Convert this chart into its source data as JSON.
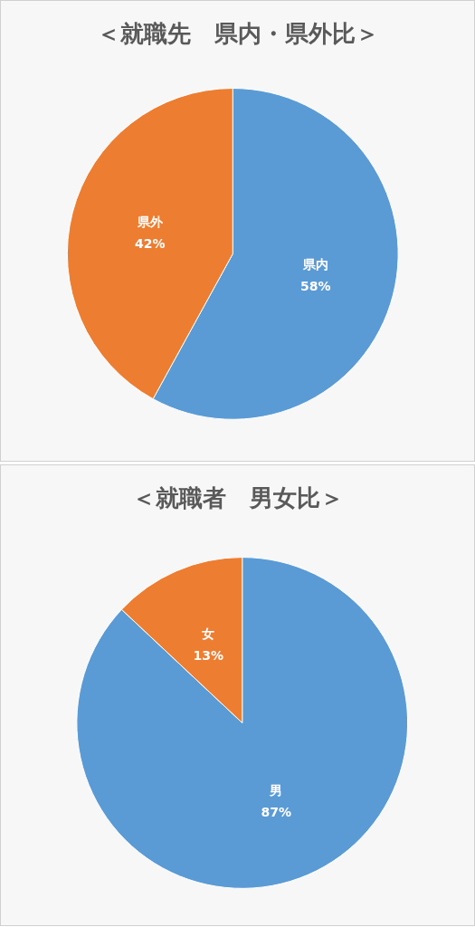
{
  "chart_data": [
    {
      "type": "pie",
      "title": "＜就職先　県内・県外比＞",
      "categories": [
        "県内",
        "県外"
      ],
      "values": [
        58,
        42
      ],
      "colors": [
        "#5b9bd5",
        "#ed7d31"
      ],
      "value_labels": [
        "58%",
        "42%"
      ]
    },
    {
      "type": "pie",
      "title": "＜就職者　男女比＞",
      "categories": [
        "男",
        "女"
      ],
      "values": [
        87,
        13
      ],
      "colors": [
        "#5b9bd5",
        "#ed7d31"
      ],
      "value_labels": [
        "87%",
        "13%"
      ]
    }
  ]
}
